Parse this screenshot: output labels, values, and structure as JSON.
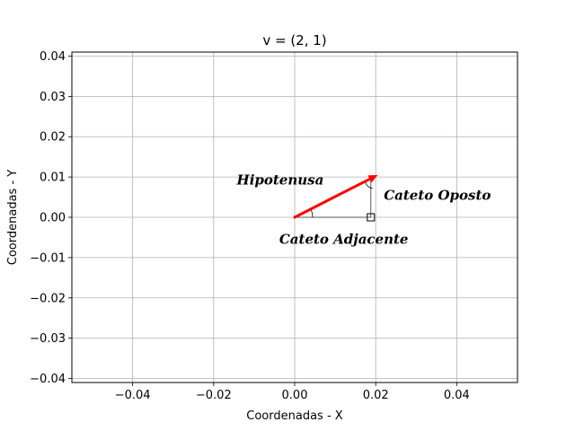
{
  "chart_data": {
    "type": "line",
    "title": "v = (2, 1)",
    "xlabel": "Coordenadas - X",
    "ylabel": "Coordenadas - Y",
    "xlim": [
      -0.055,
      0.055
    ],
    "ylim": [
      -0.041,
      0.041
    ],
    "xticks": [
      -0.04,
      -0.02,
      0.0,
      0.02,
      0.04
    ],
    "xtick_labels": [
      "−0.04",
      "−0.02",
      "0.00",
      "0.02",
      "0.04"
    ],
    "yticks": [
      -0.04,
      -0.03,
      -0.02,
      -0.01,
      0.0,
      0.01,
      0.02,
      0.03,
      0.04
    ],
    "ytick_labels": [
      "−0.04",
      "−0.03",
      "−0.02",
      "−0.01",
      "0.00",
      "0.01",
      "0.02",
      "0.03",
      "0.04"
    ],
    "grid": true,
    "vector": {
      "from": [
        0,
        0
      ],
      "to": [
        0.0205,
        0.0105
      ],
      "color": "#ff0000"
    },
    "legs": {
      "adjacent": {
        "from": [
          0,
          0
        ],
        "to": [
          0.0188,
          0
        ]
      },
      "opposite": {
        "from": [
          0.0188,
          0
        ],
        "to": [
          0.0188,
          0.0092
        ]
      }
    },
    "annotations": [
      {
        "text": "Hipotenusa",
        "x": -0.0143,
        "y": 0.0092
      },
      {
        "text": "Cateto Oposto",
        "x": 0.022,
        "y": 0.0055
      },
      {
        "text": "Cateto Adjacente",
        "x": -0.0038,
        "y": -0.0055
      }
    ]
  }
}
